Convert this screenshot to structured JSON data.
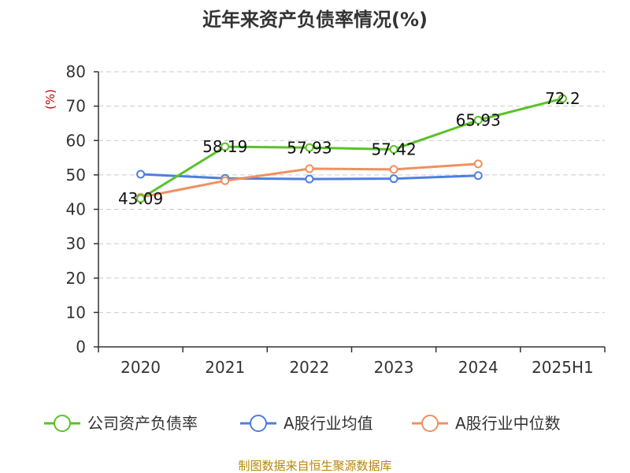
{
  "chart_data": {
    "type": "line",
    "title": "近年来资产负债率情况(%)",
    "ylabel": "(%)",
    "xlabel": "",
    "categories": [
      "2020",
      "2021",
      "2022",
      "2023",
      "2024",
      "2025H1"
    ],
    "ylim": [
      0,
      80
    ],
    "yticks": [
      0,
      10,
      20,
      30,
      40,
      50,
      60,
      70,
      80
    ],
    "grid": true,
    "legend_position": "bottom",
    "series": [
      {
        "name": "公司资产负债率",
        "color": "#5ac229",
        "values": [
          43.09,
          58.19,
          57.93,
          57.42,
          65.93,
          72.2
        ],
        "labels": [
          "43.09",
          "58.19",
          "57.93",
          "57.42",
          "65.93",
          "72.2"
        ]
      },
      {
        "name": "A股行业均值",
        "color": "#4e7fde",
        "values": [
          50.2,
          49.0,
          48.8,
          48.9,
          49.8,
          null
        ]
      },
      {
        "name": "A股行业中位数",
        "color": "#f0905f",
        "values": [
          43.5,
          48.3,
          51.8,
          51.6,
          53.2,
          null
        ]
      }
    ]
  },
  "source_text": "制图数据来自恒生聚源数据库"
}
